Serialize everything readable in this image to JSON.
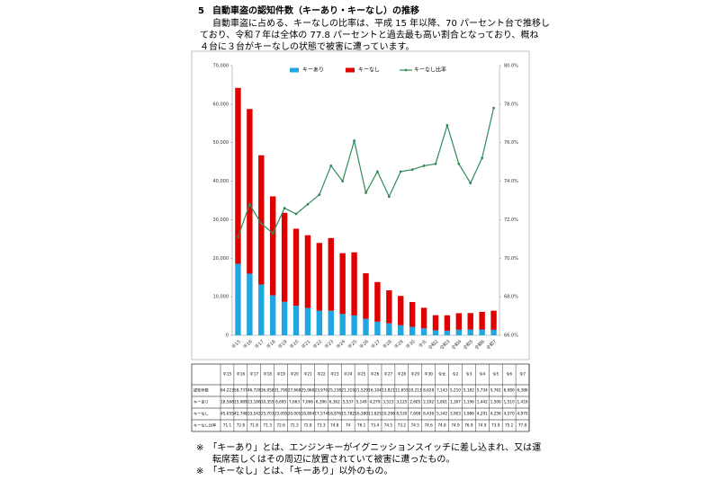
{
  "header": {
    "number": "5",
    "title": "自動車盗の認知件数（キーあり・キーなし）の推移",
    "body": [
      "自動車盗に占める、キーなしの比率は、平成 15 年以降、70 パーセント台で推移し",
      "ており、令和７年は全体の 77.8 パーセントと過去最も高い割合となっており、概ね",
      "４台に３台がキーなしの状態で被害に遭っています。"
    ]
  },
  "chart_data": {
    "type": "bar",
    "stacked": true,
    "categories": [
      "平15",
      "平16",
      "平17",
      "平18",
      "平19",
      "平20",
      "平21",
      "平22",
      "平23",
      "平24",
      "平25",
      "平26",
      "平27",
      "平28",
      "平29",
      "平30",
      "令元",
      "令和2",
      "令和3",
      "令和4",
      "令和5",
      "令和6",
      "令和7"
    ],
    "series": [
      {
        "name": "キーあり",
        "color": "#1ea7e1",
        "values": [
          18568,
          15989,
          13186,
          10355,
          8695,
          7663,
          7066,
          6396,
          6362,
          5537,
          5149,
          4279,
          3523,
          3125,
          2605,
          2192,
          1801,
          1307,
          1196,
          1442,
          1506,
          1510,
          1416
        ],
        "value_labels": [
          "18,568",
          "15,989",
          "13,186",
          "10,355",
          "8,695",
          "7,663",
          "7,066",
          "6,396",
          "6,362",
          "5,537",
          "5,149",
          "4,279",
          "3,523",
          "3,125",
          "2,605",
          "2,192",
          "1,801",
          "1,307",
          "1,196",
          "1,442",
          "1,506",
          "1,510",
          "1,416"
        ]
      },
      {
        "name": "キーなし",
        "color": "#e00000",
        "values": [
          45655,
          42748,
          33542,
          25703,
          23095,
          20005,
          18894,
          17574,
          18876,
          15782,
          16380,
          11825,
          10298,
          8530,
          7608,
          6436,
          5342,
          3903,
          3986,
          4291,
          4256,
          4570,
          4970
        ],
        "value_labels": [
          "45,655",
          "42,748",
          "33,542",
          "25,703",
          "23,095",
          "20,005",
          "18,894",
          "17,574",
          "18,876",
          "15,782",
          "16,380",
          "11,825",
          "10,298",
          "8,530",
          "7,608",
          "6,436",
          "5,342",
          "3,903",
          "3,986",
          "4,291",
          "4,256",
          "4,570",
          "4,970"
        ]
      },
      {
        "name": "キーなし比率",
        "type": "line",
        "axis": "y2",
        "color": "#2e8b57",
        "values": [
          71.1,
          72.8,
          71.8,
          71.3,
          72.6,
          72.3,
          72.8,
          73.3,
          74.8,
          74.0,
          76.1,
          73.4,
          74.5,
          73.2,
          74.5,
          74.6,
          74.8,
          74.9,
          76.9,
          74.9,
          73.9,
          75.2,
          77.8
        ]
      }
    ],
    "ylim": [
      0,
      70000
    ],
    "yticks": [
      0,
      {
        "value": 10000,
        "label": "10,000"
      },
      {
        "value": 20000,
        "label": "20,000"
      },
      {
        "value": 30000,
        "label": "30,000"
      },
      {
        "value": 40000,
        "label": "40,000"
      },
      {
        "value": 50000,
        "label": "50,000"
      },
      {
        "value": 60000,
        "label": "60,000"
      },
      {
        "value": 70000,
        "label": "70,000"
      }
    ],
    "y2lim": [
      66,
      80
    ],
    "y2ticks": [
      {
        "value": 66,
        "label": "66.0%"
      },
      {
        "value": 68,
        "label": "68.0%"
      },
      {
        "value": 70,
        "label": "70.0%"
      },
      {
        "value": 72,
        "label": "72.0%"
      },
      {
        "value": 74,
        "label": "74.0%"
      },
      {
        "value": 76,
        "label": "76.0%"
      },
      {
        "value": 78,
        "label": "78.0%"
      },
      {
        "value": 80,
        "label": "80.0%"
      }
    ],
    "legend": "top"
  },
  "table": {
    "columns": [
      "平15",
      "平16",
      "平17",
      "平18",
      "平19",
      "平20",
      "平21",
      "平22",
      "平23",
      "平24",
      "平25",
      "平26",
      "平27",
      "平28",
      "平29",
      "平30",
      "令元",
      "令2",
      "令3",
      "令4",
      "令5",
      "令6",
      "令7"
    ],
    "row_labels": [
      "認知件数",
      "キーあり",
      "キーなし",
      "キーなし比率"
    ],
    "total": [
      "64,223",
      "58,737",
      "46,728",
      "36,058",
      "31,790",
      "27,668",
      "25,960",
      "23,970",
      "25,238",
      "21,319",
      "21,529",
      "16,104",
      "13,821",
      "11,655",
      "10,213",
      "8,628",
      "7,143",
      "5,210",
      "5,182",
      "5,734",
      "5,762",
      "6,080",
      "6,386"
    ]
  },
  "notes": [
    "※　「キーあり」とは、エンジンキーがイグニッションスイッチに差し込まれ、又は運",
    "転席若しくはその周辺に放置されていて被害に遭ったもの。",
    "※　「キーなし」とは、「キーあり」以外のもの。"
  ]
}
